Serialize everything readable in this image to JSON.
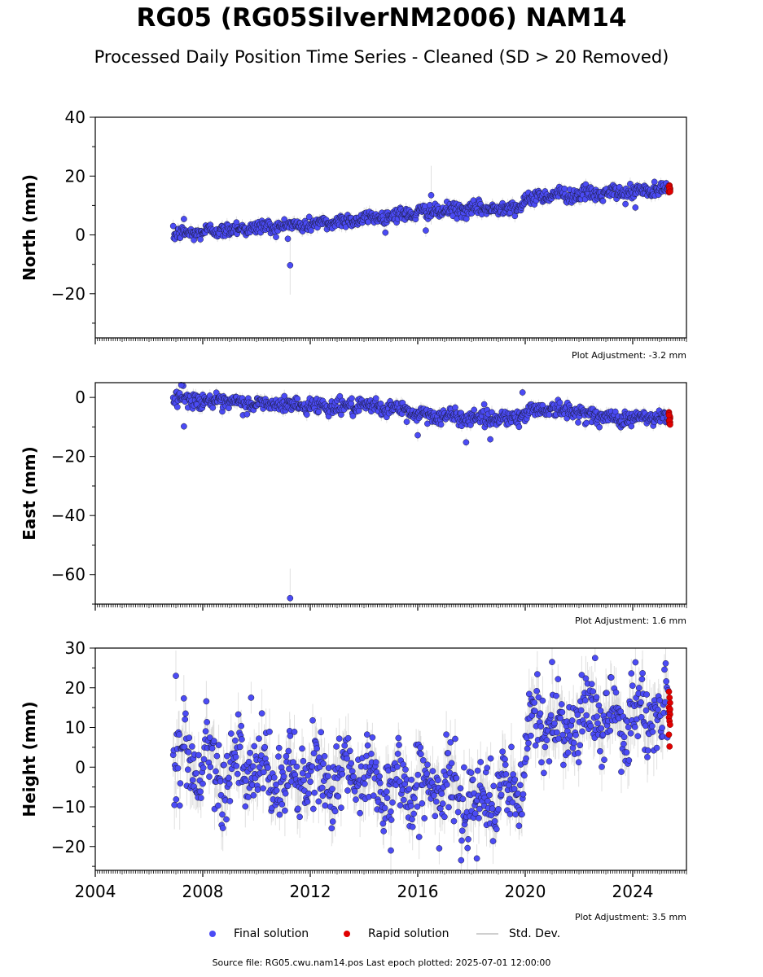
{
  "title": "RG05 (RG05SilverNM2006) NAM14",
  "subtitle": "Processed Daily Position Time Series - Cleaned (SD > 20 Removed)",
  "chart_data": [
    {
      "type": "scatter",
      "ylabel": "North (mm)",
      "xlim": [
        2004,
        2026
      ],
      "ylim": [
        -35,
        40
      ],
      "yticks": [
        -20,
        0,
        20,
        40
      ],
      "adjustment": "Plot Adjustment: -3.2 mm",
      "trend": [
        [
          2006.9,
          0
        ],
        [
          2009,
          2
        ],
        [
          2012,
          3.5
        ],
        [
          2014,
          5.5
        ],
        [
          2016.5,
          8
        ],
        [
          2019,
          9
        ],
        [
          2019.8,
          10
        ],
        [
          2020.5,
          13.5
        ],
        [
          2023,
          14
        ],
        [
          2025.4,
          15.5
        ]
      ],
      "noise_sd": 1.2,
      "outliers": [
        {
          "x": 2011.25,
          "y": -10.3
        },
        {
          "x": 2016.5,
          "y": 13.5
        },
        {
          "x": 2016.3,
          "y": 1.5
        },
        {
          "x": 2024.1,
          "y": 9.3
        },
        {
          "x": 2007.3,
          "y": 5.4
        }
      ],
      "rapid": [
        14.5,
        15.2,
        15.8,
        16.3,
        16.8,
        15.5,
        14.9,
        16.1,
        15.0,
        16.5,
        15.7,
        14.7
      ]
    },
    {
      "type": "scatter",
      "ylabel": "East (mm)",
      "xlim": [
        2004,
        2026
      ],
      "ylim": [
        -70,
        5
      ],
      "yticks": [
        -60,
        -40,
        -20,
        0
      ],
      "adjustment": "Plot Adjustment: 1.6 mm",
      "trend": [
        [
          2006.9,
          0
        ],
        [
          2009,
          -2
        ],
        [
          2011,
          -2.5
        ],
        [
          2013,
          -3
        ],
        [
          2015,
          -3.5
        ],
        [
          2016,
          -5.5
        ],
        [
          2017,
          -6.5
        ],
        [
          2019,
          -7
        ],
        [
          2019.8,
          -6.5
        ],
        [
          2020.5,
          -3.5
        ],
        [
          2022,
          -5
        ],
        [
          2023,
          -7
        ],
        [
          2025.4,
          -7
        ]
      ],
      "noise_sd": 1.3,
      "outliers": [
        {
          "x": 2011.25,
          "y": -68
        },
        {
          "x": 2007.2,
          "y": 4.2
        },
        {
          "x": 2007.3,
          "y": -9.8
        },
        {
          "x": 2017.8,
          "y": -15.2
        },
        {
          "x": 2019.9,
          "y": 1.7
        },
        {
          "x": 2016.0,
          "y": -12.8
        },
        {
          "x": 2018.7,
          "y": -14.2
        }
      ],
      "rapid": [
        -5.0,
        -6.2,
        -7.1,
        -8.0,
        -8.9,
        -6.6,
        -5.5,
        -7.5,
        -8.4,
        -6.0,
        -7.8,
        -9.2
      ]
    },
    {
      "type": "scatter",
      "ylabel": "Height (mm)",
      "xlim": [
        2004,
        2026
      ],
      "ylim": [
        -26,
        30
      ],
      "yticks": [
        -20,
        -10,
        0,
        10,
        20,
        30
      ],
      "xticks": [
        2004,
        2008,
        2012,
        2016,
        2020,
        2024
      ],
      "adjustment": "Plot Adjustment: 3.5 mm",
      "trend": [
        [
          2006.9,
          3
        ],
        [
          2009,
          0
        ],
        [
          2011,
          -3
        ],
        [
          2013,
          -2
        ],
        [
          2015,
          -4
        ],
        [
          2017,
          -6
        ],
        [
          2019,
          -8
        ],
        [
          2019.8,
          -6
        ],
        [
          2020.2,
          10
        ],
        [
          2022,
          12
        ],
        [
          2025.4,
          13
        ]
      ],
      "noise_sd": 4.8,
      "outliers": [
        {
          "x": 2007.0,
          "y": 23
        },
        {
          "x": 2015.0,
          "y": -21
        },
        {
          "x": 2018.2,
          "y": -23
        },
        {
          "x": 2021.0,
          "y": 26.5
        },
        {
          "x": 2022.6,
          "y": 27.5
        },
        {
          "x": 2009.8,
          "y": 17.5
        }
      ],
      "rapid": [
        19,
        17.5,
        16.2,
        15,
        14.1,
        13.3,
        12.5,
        11.6,
        10.7,
        8.2,
        5.2,
        14.6
      ]
    }
  ],
  "legend": {
    "final": "Final solution",
    "rapid": "Rapid solution",
    "std": "Std. Dev."
  },
  "footer": "Source file: RG05.cwu.nam14.pos  Last epoch plotted: 2025-07-01 12:00:00",
  "colors": {
    "final": "#4b4bf5",
    "rapid": "#e00000",
    "std": "#c8c8c8"
  }
}
